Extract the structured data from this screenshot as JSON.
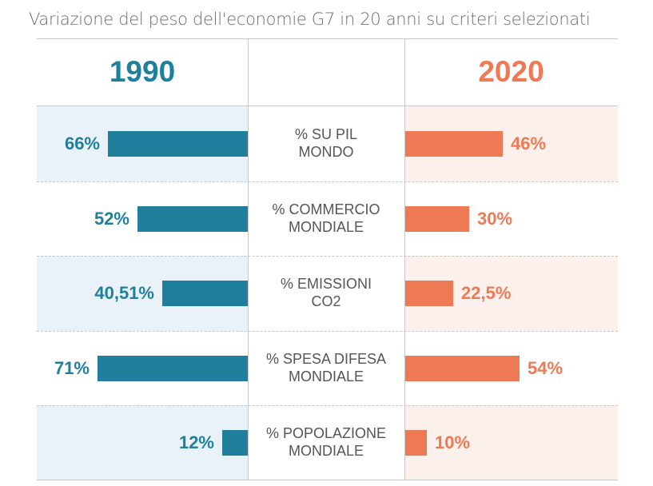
{
  "title": "Variazione del peso dell'economie G7 in 20 anni su criteri selezionati",
  "colors": {
    "left": "#1f7f9c",
    "right": "#ee7a55",
    "left_bg": "#e9f2f8",
    "right_bg": "#fcf0ec"
  },
  "chart_data": {
    "type": "bar",
    "title": "Variazione del peso dell'economie G7 in 20 anni su criteri selezionati",
    "series": [
      {
        "name": "1990",
        "values": [
          66,
          52,
          40.51,
          71,
          12
        ],
        "labels": [
          "66%",
          "52%",
          "40,51%",
          "71%",
          "12%"
        ]
      },
      {
        "name": "2020",
        "values": [
          46,
          30,
          22.5,
          54,
          10
        ],
        "labels": [
          "46%",
          "30%",
          "22,5%",
          "54%",
          "10%"
        ]
      }
    ],
    "categories": [
      [
        "% SU PIL",
        "MONDO"
      ],
      [
        "% COMMERCIO",
        "MONDIALE"
      ],
      [
        "% EMISSIONI",
        "CO2"
      ],
      [
        "% SPESA DIFESA",
        "MONDIALE"
      ],
      [
        "% POPOLAZIONE",
        "MONDIALE"
      ]
    ],
    "orientation": "horizontal-butterfly",
    "grid": false,
    "legend": "none"
  }
}
